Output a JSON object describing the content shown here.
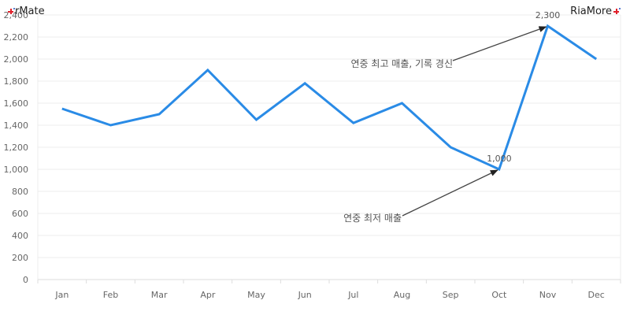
{
  "branding": {
    "left": "rMate",
    "right": "RiaMore"
  },
  "colors": {
    "line": "#2a8be6",
    "grid": "#ececec",
    "axis_text": "#666666",
    "annotation_text": "#555555",
    "arrow": "#444444"
  },
  "chart_data": {
    "type": "line",
    "title": "",
    "xlabel": "",
    "ylabel": "",
    "categories": [
      "Jan",
      "Feb",
      "Mar",
      "Apr",
      "May",
      "Jun",
      "Jul",
      "Aug",
      "Sep",
      "Oct",
      "Nov",
      "Dec"
    ],
    "series": [
      {
        "values": [
          1550,
          1400,
          1500,
          1900,
          1450,
          1780,
          1420,
          1600,
          1200,
          1000,
          2300,
          2000
        ]
      }
    ],
    "ylim": [
      0,
      2400
    ],
    "yticks": [
      0,
      200,
      400,
      600,
      800,
      1000,
      1200,
      1400,
      1600,
      1800,
      2000,
      2200,
      2400
    ],
    "ytick_labels": [
      "0",
      "200",
      "400",
      "600",
      "800",
      "1,000",
      "1,200",
      "1,400",
      "1,600",
      "1,800",
      "2,000",
      "2,200",
      "2,400"
    ],
    "grid": true,
    "annotations": [
      {
        "text": "연중 최고 매출, 기록 경신",
        "category": "Nov",
        "value": 2300,
        "value_label": "2,300"
      },
      {
        "text": "연중 최저 매출",
        "category": "Oct",
        "value": 1000,
        "value_label": "1,000"
      }
    ]
  }
}
